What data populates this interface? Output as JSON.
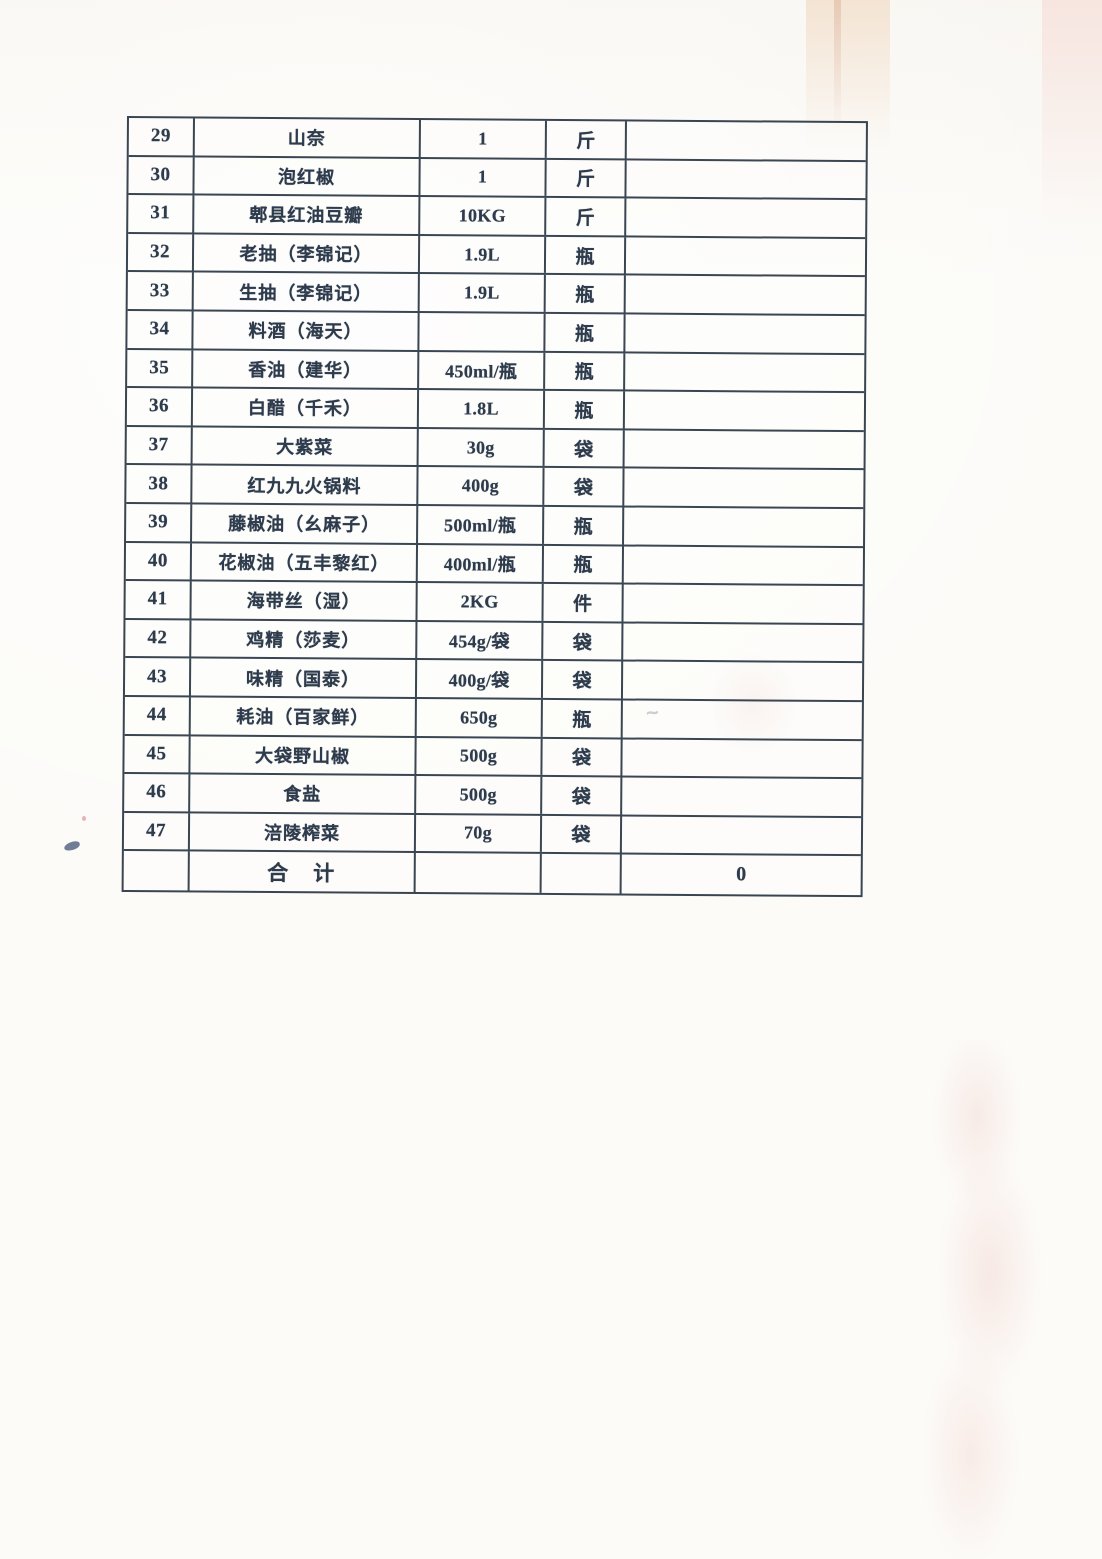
{
  "page": {
    "background_color": "#fcfbf8",
    "ink_color": "#2d3b4c",
    "table_line_color": "#3a4652"
  },
  "table": {
    "rows": [
      {
        "no": "29",
        "name": "山奈",
        "spec": "1",
        "unit": "斤",
        "amount": ""
      },
      {
        "no": "30",
        "name": "泡红椒",
        "spec": "1",
        "unit": "斤",
        "amount": ""
      },
      {
        "no": "31",
        "name": "郫县红油豆瓣",
        "spec": "10KG",
        "unit": "斤",
        "amount": ""
      },
      {
        "no": "32",
        "name": "老抽（李锦记）",
        "spec": "1.9L",
        "unit": "瓶",
        "amount": ""
      },
      {
        "no": "33",
        "name": "生抽（李锦记）",
        "spec": "1.9L",
        "unit": "瓶",
        "amount": ""
      },
      {
        "no": "34",
        "name": "料酒（海天）",
        "spec": "",
        "unit": "瓶",
        "amount": ""
      },
      {
        "no": "35",
        "name": "香油（建华）",
        "spec": "450ml/瓶",
        "unit": "瓶",
        "amount": ""
      },
      {
        "no": "36",
        "name": "白醋（千禾）",
        "spec": "1.8L",
        "unit": "瓶",
        "amount": ""
      },
      {
        "no": "37",
        "name": "大紫菜",
        "spec": "30g",
        "unit": "袋",
        "amount": ""
      },
      {
        "no": "38",
        "name": "红九九火锅料",
        "spec": "400g",
        "unit": "袋",
        "amount": ""
      },
      {
        "no": "39",
        "name": "藤椒油（幺麻子）",
        "spec": "500ml/瓶",
        "unit": "瓶",
        "amount": ""
      },
      {
        "no": "40",
        "name": "花椒油（五丰黎红）",
        "spec": "400ml/瓶",
        "unit": "瓶",
        "amount": ""
      },
      {
        "no": "41",
        "name": "海带丝（湿）",
        "spec": "2KG",
        "unit": "件",
        "amount": ""
      },
      {
        "no": "42",
        "name": "鸡精（莎麦）",
        "spec": "454g/袋",
        "unit": "袋",
        "amount": ""
      },
      {
        "no": "43",
        "name": "味精（国泰）",
        "spec": "400g/袋",
        "unit": "袋",
        "amount": ""
      },
      {
        "no": "44",
        "name": "耗油（百家鲜）",
        "spec": "650g",
        "unit": "瓶",
        "amount": ""
      },
      {
        "no": "45",
        "name": "大袋野山椒",
        "spec": "500g",
        "unit": "袋",
        "amount": ""
      },
      {
        "no": "46",
        "name": "食盐",
        "spec": "500g",
        "unit": "袋",
        "amount": ""
      },
      {
        "no": "47",
        "name": "涪陵榨菜",
        "spec": "70g",
        "unit": "袋",
        "amount": ""
      }
    ],
    "total_row": {
      "no": "",
      "label": "合　计",
      "spec": "",
      "unit": "",
      "amount": "0"
    }
  }
}
